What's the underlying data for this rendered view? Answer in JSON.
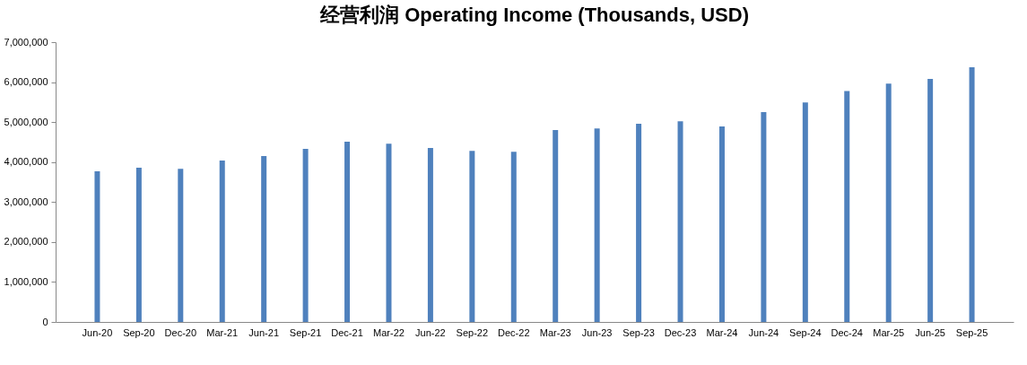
{
  "chart_data": {
    "type": "bar",
    "title": "经营利润 Operating Income (Thousands, USD)",
    "categories": [
      "Jun-20",
      "Sep-20",
      "Dec-20",
      "Mar-21",
      "Jun-21",
      "Sep-21",
      "Dec-21",
      "Mar-22",
      "Jun-22",
      "Sep-22",
      "Dec-22",
      "Mar-23",
      "Jun-23",
      "Sep-23",
      "Dec-23",
      "Mar-24",
      "Jun-24",
      "Sep-24",
      "Dec-24",
      "Mar-25",
      "Jun-25",
      "Sep-25"
    ],
    "values": [
      3770000,
      3860000,
      3830000,
      4040000,
      4150000,
      4330000,
      4510000,
      4460000,
      4350000,
      4280000,
      4260000,
      4800000,
      4840000,
      4960000,
      5020000,
      4890000,
      5250000,
      5490000,
      5780000,
      5960000,
      6080000,
      6370000
    ],
    "color": "#4f81bd",
    "ylim": [
      0,
      7000000
    ],
    "yticks": [
      {
        "value": 0,
        "label": "0"
      },
      {
        "value": 1000000,
        "label": "1,000,000"
      },
      {
        "value": 2000000,
        "label": "2,000,000"
      },
      {
        "value": 3000000,
        "label": "3,000,000"
      },
      {
        "value": 4000000,
        "label": "4,000,000"
      },
      {
        "value": 5000000,
        "label": "5,000,000"
      },
      {
        "value": 6000000,
        "label": "6,000,000"
      },
      {
        "value": 7000000,
        "label": "7,000,000"
      }
    ],
    "grid": false
  }
}
